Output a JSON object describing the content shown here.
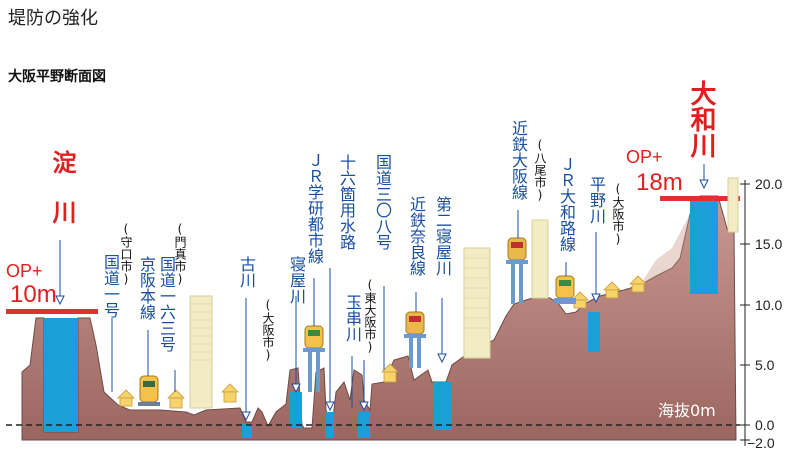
{
  "page_title": "堤防の強化",
  "diagram_title": "大阪平野断面図",
  "rivers_major": [
    {
      "name": "淀川",
      "op_label": "OP+",
      "height_label": "10m"
    },
    {
      "name": "大和川",
      "op_label": "OP+",
      "height_label": "18m"
    }
  ],
  "labels": {
    "moriguchi": "(守口市)",
    "kokudo1": "国道一号",
    "keihan": "京阪本線",
    "kadoma": "(門真市)",
    "kokudo163": "国道一六三号",
    "furukawa": "古川",
    "daito": "(大阪市)",
    "jr_gakken": "ＪＲ学研都市線",
    "neyagawa": "寝屋川",
    "jurokken": "十六箇用水路",
    "kokudo308": "国道三〇八号",
    "tamakushi": "玉串川",
    "higashiosaka": "(東大阪市)",
    "kintetsu_nara": "近鉄奈良線",
    "dai2neya": "第二寝屋川",
    "kintetsu_osaka": "近鉄大阪線",
    "yao": "(八尾市)",
    "jr_yamatoji": "ＪＲ大和路線",
    "hirano": "平野川",
    "osaka2": "(大阪市)",
    "sea_level": "海抜0m"
  },
  "y_axis": {
    "ticks": [
      "20.0",
      "15.0",
      "10.0",
      "5.0",
      "0.0",
      "−2.0"
    ],
    "values": [
      20,
      15,
      10,
      5,
      0,
      -2
    ]
  },
  "colors": {
    "ground": "#b8807a",
    "ground_dark": "#8a5a55",
    "water": "#1a9fd8",
    "levee_line": "#e03030",
    "label_blue": "#1a4fa0",
    "title_red": "#e02020"
  }
}
